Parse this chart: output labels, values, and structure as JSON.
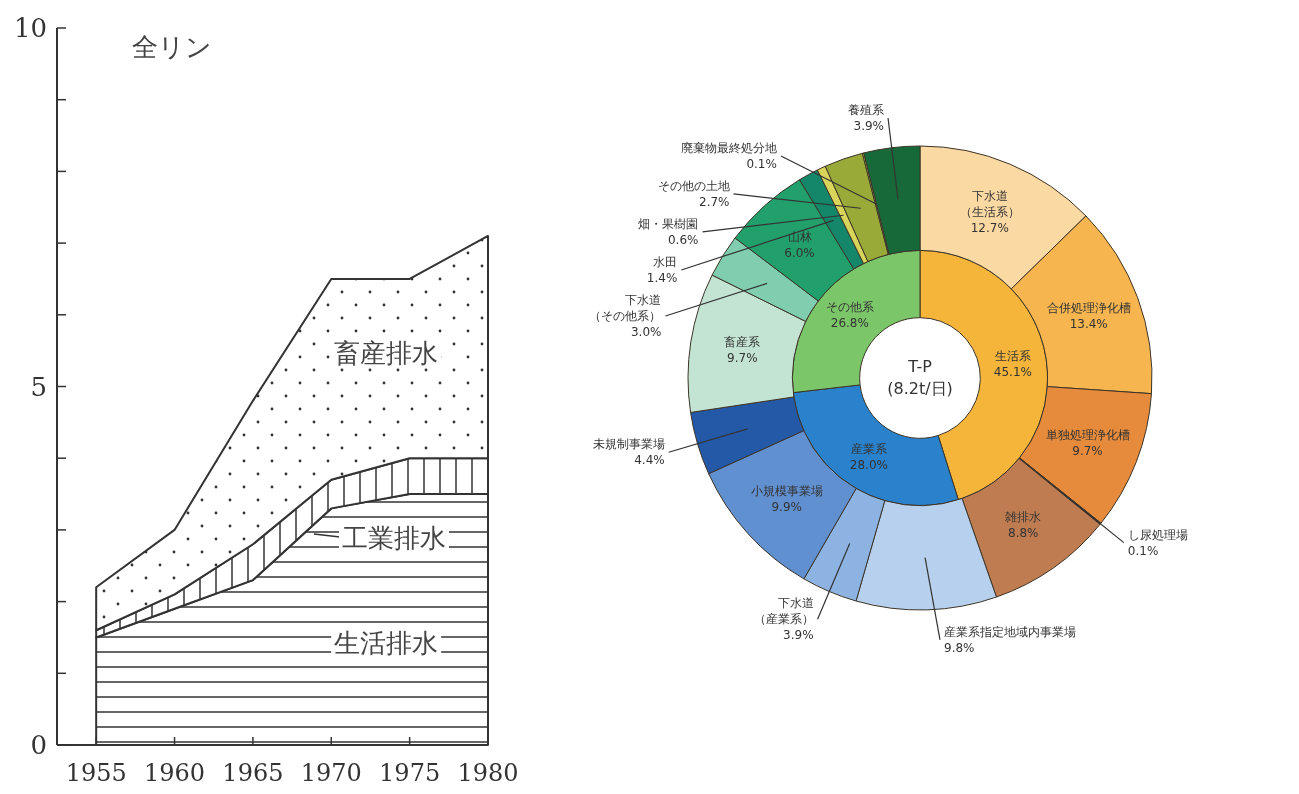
{
  "chart_data": [
    {
      "type": "area",
      "stacked": true,
      "title": "全リン",
      "x": [
        1955,
        1960,
        1965,
        1970,
        1975,
        1980
      ],
      "xlim": [
        1952.5,
        1980
      ],
      "xticks": [
        1955,
        1960,
        1965,
        1970,
        1975,
        1980
      ],
      "ylim": [
        0,
        10
      ],
      "yticks": [
        0,
        {
          "value": 1,
          "label": null
        },
        {
          "value": 2,
          "label": null
        },
        {
          "value": 3,
          "label": null
        },
        {
          "value": 4,
          "label": null
        },
        5,
        {
          "value": 6,
          "label": null
        },
        {
          "value": 7,
          "label": null
        },
        {
          "value": 8,
          "label": null
        },
        {
          "value": 9,
          "label": null
        },
        10
      ],
      "series": [
        {
          "name": "生活排水",
          "color": "#333333",
          "values": [
            1.5,
            1.9,
            2.3,
            3.3,
            3.5,
            3.5
          ]
        },
        {
          "name": "工業排水",
          "color": "#333333",
          "values": [
            0.1,
            0.2,
            0.5,
            0.4,
            0.5,
            0.5
          ]
        },
        {
          "name": "畜産排水",
          "color": "#333333",
          "values": [
            0.6,
            0.9,
            2.0,
            2.8,
            2.5,
            3.1
          ]
        }
      ]
    },
    {
      "type": "donut",
      "annotations": [
        "T-P\n(8.2t/日)"
      ],
      "categories": [
        "生活系",
        "産業系",
        "その他系"
      ],
      "values": [
        45.1,
        28.0,
        26.8
      ],
      "colors": [
        "#f5b53a",
        "#2b82cc",
        "#7cc66a"
      ],
      "value_labels": [
        "45.1%",
        "28.0%",
        "26.8%"
      ]
    },
    {
      "type": "donut",
      "categories": [
        "下水道（生活系）",
        "合併処理浄化槽",
        "単独処理浄化槽",
        "し尿処理場",
        "雑排水",
        "産業系指定地域内事業場",
        "下水道（産業系）",
        "小規模事業場",
        "未規制事業場",
        "畜産系",
        "下水道（その他系）",
        "山林",
        "水田",
        "畑・果樹園",
        "その他の土地",
        "廃棄物最終処分地",
        "養殖系"
      ],
      "values": [
        12.7,
        13.4,
        9.7,
        0.1,
        8.8,
        9.8,
        3.9,
        9.9,
        4.4,
        9.7,
        3.0,
        6.0,
        1.4,
        0.6,
        2.7,
        0.1,
        3.9
      ],
      "colors": [
        "#fbd9a3",
        "#f7b550",
        "#e68b3c",
        "#3b2a1c",
        "#be7c50",
        "#b7d0ee",
        "#8db3e3",
        "#6190d0",
        "#2459a8",
        "#c4e4d3",
        "#80cdb0",
        "#22a06c",
        "#14876a",
        "#d9d45a",
        "#9aaa38",
        "#c9c94a",
        "#17693a"
      ],
      "value_labels": [
        "12.7%",
        "13.4%",
        "9.7%",
        "0.1%",
        "8.8%",
        "9.8%",
        "3.9%",
        "9.9%",
        "4.4%",
        "9.7%",
        "3.0%",
        "6.0%",
        "1.4%",
        "0.6%",
        "2.7%",
        "0.1%",
        "3.9%"
      ]
    }
  ]
}
